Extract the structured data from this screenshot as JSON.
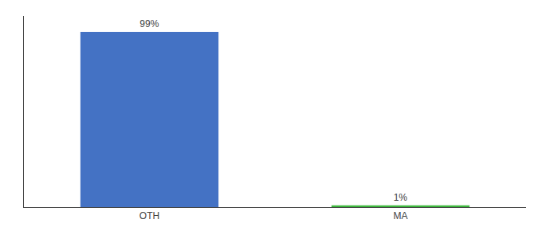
{
  "chart_data": {
    "type": "bar",
    "categories": [
      "OTH",
      "MA"
    ],
    "values": [
      99,
      1
    ],
    "value_labels": [
      "99%",
      "1%"
    ],
    "colors": [
      "#4472c4",
      "#3db83d"
    ],
    "ylim": [
      0,
      108
    ],
    "data_labels": true,
    "tick_labels": "x",
    "grid": false
  }
}
